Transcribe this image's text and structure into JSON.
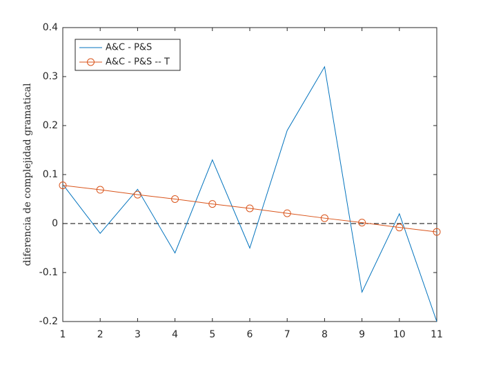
{
  "chart_data": {
    "type": "line",
    "ylabel": "diferencia de complejidad gramatical",
    "x": [
      1,
      2,
      3,
      4,
      5,
      6,
      7,
      8,
      9,
      10,
      11
    ],
    "series": [
      {
        "name": "A&C - P&S",
        "color": "#0072bd",
        "marker": "none",
        "values": [
          0.08,
          -0.02,
          0.07,
          -0.06,
          0.13,
          -0.05,
          0.19,
          0.32,
          -0.14,
          0.02,
          -0.2
        ]
      },
      {
        "name": "A&C - P&S -- T",
        "color": "#d95319",
        "marker": "circle",
        "values": [
          0.078,
          0.069,
          0.059,
          0.05,
          0.04,
          0.031,
          0.021,
          0.011,
          0.002,
          -0.008,
          -0.017
        ]
      }
    ],
    "hline": 0,
    "xlim": [
      1,
      11
    ],
    "xticks": [
      1,
      2,
      3,
      4,
      5,
      6,
      7,
      8,
      9,
      10,
      11
    ],
    "ylim": [
      -0.2,
      0.4
    ],
    "yticks": [
      -0.2,
      -0.1,
      0,
      0.1,
      0.2,
      0.3,
      0.4
    ],
    "legend": "top-left",
    "grid": false
  }
}
